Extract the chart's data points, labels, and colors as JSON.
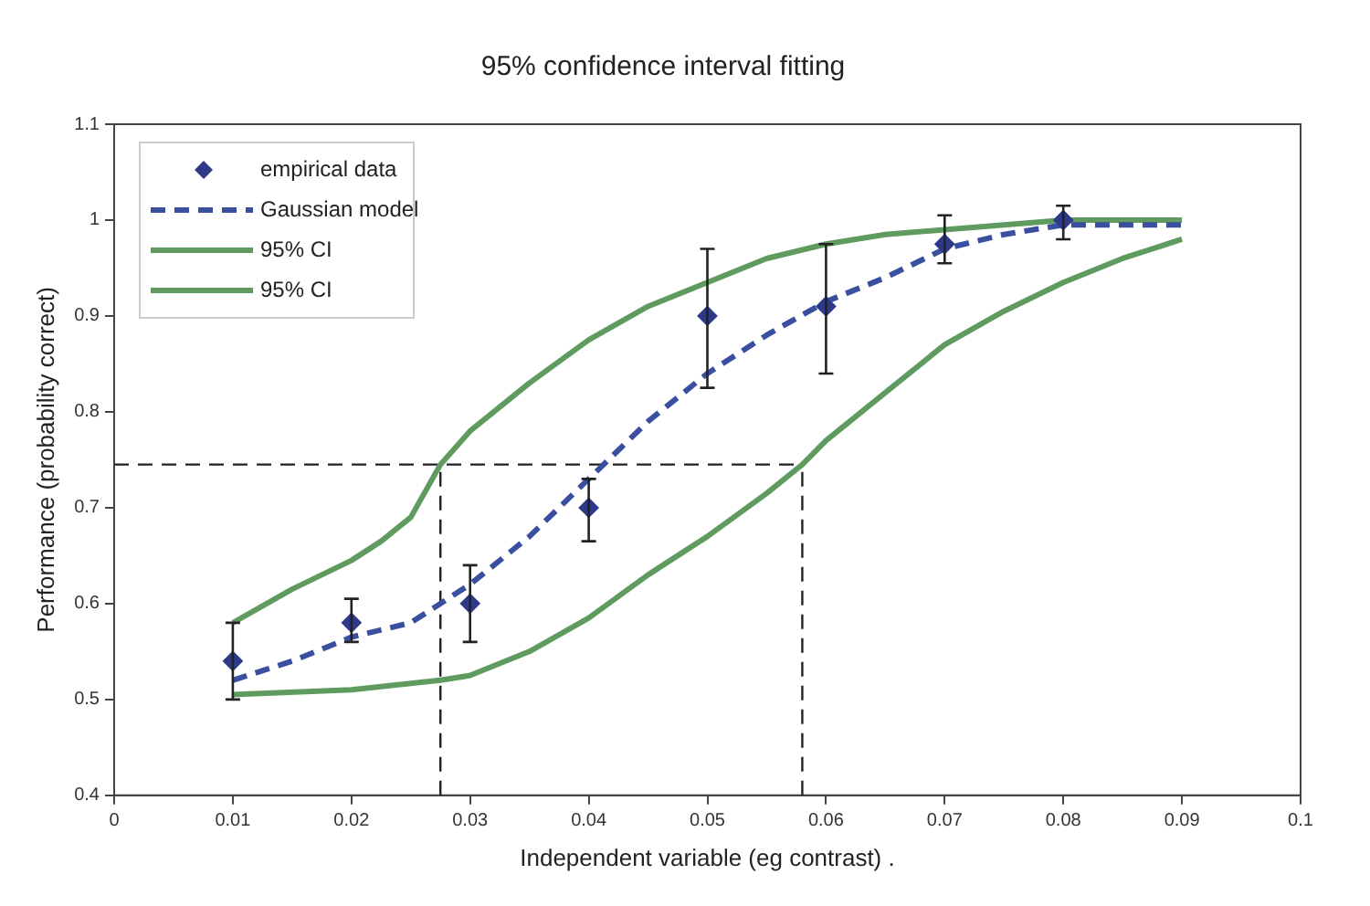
{
  "chart_data": {
    "type": "line",
    "title": "95% confidence interval fitting",
    "xlabel": "Independent variable (eg contrast) .",
    "ylabel": "Performance (probability correct)",
    "xlim": [
      0,
      0.1
    ],
    "xticks": [
      0,
      0.01,
      0.02,
      0.03,
      0.04,
      0.05,
      0.06,
      0.07,
      0.08,
      0.09,
      0.1
    ],
    "ylim": [
      0.4,
      1.1
    ],
    "yticks": [
      0.4,
      0.5,
      0.6,
      0.7,
      0.8,
      0.9,
      1,
      1.1
    ],
    "grid": false,
    "legend": "top left",
    "series": [
      {
        "name": "empirical data",
        "type": "scatter",
        "color": "#2e3a87",
        "marker": "diamond",
        "x": [
          0.01,
          0.02,
          0.03,
          0.04,
          0.05,
          0.06,
          0.07,
          0.08
        ],
        "values": [
          0.54,
          0.58,
          0.6,
          0.7,
          0.9,
          0.91,
          0.975,
          1.0
        ],
        "errors": [
          [
            0.5,
            0.58
          ],
          [
            0.56,
            0.605
          ],
          [
            0.56,
            0.64
          ],
          [
            0.665,
            0.73
          ],
          [
            0.825,
            0.97
          ],
          [
            0.84,
            0.975
          ],
          [
            0.955,
            1.005
          ],
          [
            0.98,
            1.015
          ]
        ]
      },
      {
        "name": "Gaussian model",
        "type": "line",
        "color": "#3a4fa0",
        "line_style": "dashed",
        "marker": "none",
        "x": [
          0.01,
          0.015,
          0.02,
          0.025,
          0.03,
          0.035,
          0.04,
          0.045,
          0.05,
          0.055,
          0.06,
          0.065,
          0.07,
          0.075,
          0.08,
          0.09
        ],
        "values": [
          0.52,
          0.54,
          0.565,
          0.58,
          0.62,
          0.67,
          0.73,
          0.79,
          0.84,
          0.88,
          0.915,
          0.94,
          0.97,
          0.985,
          0.995,
          0.995
        ]
      },
      {
        "name": "95% CI",
        "type": "line",
        "color": "#5f9b5f",
        "line_style": "solid",
        "marker": "none",
        "x": [
          0.01,
          0.015,
          0.02,
          0.0225,
          0.025,
          0.0275,
          0.03,
          0.035,
          0.04,
          0.045,
          0.05,
          0.055,
          0.06,
          0.065,
          0.07,
          0.08,
          0.09
        ],
        "values": [
          0.58,
          0.615,
          0.645,
          0.665,
          0.69,
          0.745,
          0.78,
          0.83,
          0.875,
          0.91,
          0.935,
          0.96,
          0.975,
          0.985,
          0.99,
          1.0,
          1.0
        ]
      },
      {
        "name": "95% CI",
        "type": "line",
        "color": "#5f9b5f",
        "line_style": "solid",
        "marker": "none",
        "x": [
          0.01,
          0.02,
          0.0275,
          0.03,
          0.035,
          0.04,
          0.045,
          0.05,
          0.055,
          0.058,
          0.06,
          0.065,
          0.07,
          0.075,
          0.08,
          0.085,
          0.09
        ],
        "values": [
          0.505,
          0.51,
          0.52,
          0.525,
          0.55,
          0.585,
          0.63,
          0.67,
          0.715,
          0.745,
          0.77,
          0.82,
          0.87,
          0.905,
          0.935,
          0.96,
          0.98
        ]
      }
    ],
    "ref_lines": [
      {
        "axis": "y",
        "value": 0.745,
        "color": "#222222",
        "line_style": "dashed"
      },
      {
        "axis": "x",
        "value": 0.0275,
        "color": "#222222",
        "line_style": "dashed"
      },
      {
        "axis": "x",
        "value": 0.058,
        "color": "#222222",
        "line_style": "dashed"
      }
    ]
  }
}
